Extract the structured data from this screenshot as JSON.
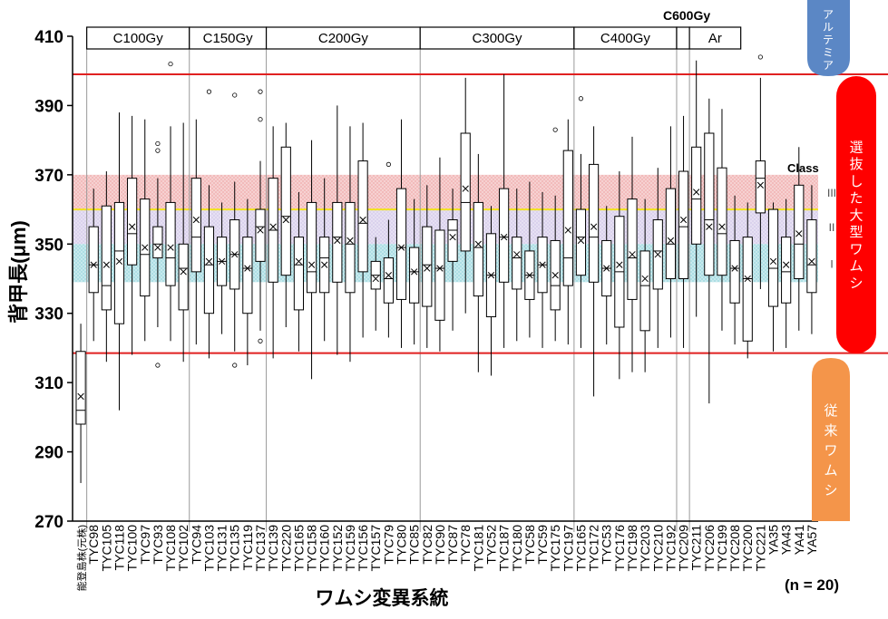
{
  "chart_data": {
    "type": "box",
    "ylabel": "背甲長(μm)",
    "xlabel": "ワムシ変異系統",
    "ylim": [
      270,
      410
    ],
    "yticks": [
      270,
      290,
      310,
      330,
      350,
      370,
      390,
      410
    ],
    "sample_note": "(n = 20)",
    "class_label": "Class",
    "class_bands": [
      {
        "name": "III",
        "range": [
          360,
          370
        ],
        "color": "#f2b8b8"
      },
      {
        "name": "II",
        "range": [
          350,
          360
        ],
        "color": "#d9d0ec"
      },
      {
        "name": "I",
        "range": [
          339,
          350
        ],
        "color": "#a9dde3"
      }
    ],
    "class_lines": [
      {
        "value": 360,
        "color": "#f2e41c"
      }
    ],
    "red_lines": [
      399,
      318.5
    ],
    "dose_groups": [
      {
        "label": "C100Gy",
        "start": 1,
        "end": 8
      },
      {
        "label": "C150Gy",
        "start": 9,
        "end": 14
      },
      {
        "label": "C200Gy",
        "start": 15,
        "end": 26
      },
      {
        "label": "C300Gy",
        "start": 27,
        "end": 38
      },
      {
        "label": "C400Gy",
        "start": 39,
        "end": 46
      },
      {
        "label": "C600Gy",
        "start": 47,
        "end": 47
      },
      {
        "label": "Ar",
        "start": 48,
        "end": 51
      }
    ],
    "boxes": [
      {
        "name": "能登島株(元株)",
        "min": 281,
        "q1": 298,
        "median": 302,
        "q3": 319,
        "max": 327,
        "mean": 306,
        "outliers": []
      },
      {
        "name": "TYC98",
        "min": 322,
        "q1": 336,
        "median": 344,
        "q3": 355,
        "max": 366,
        "mean": 344,
        "outliers": []
      },
      {
        "name": "TYC105",
        "min": 316,
        "q1": 331,
        "median": 338,
        "q3": 361,
        "max": 371,
        "mean": 344,
        "outliers": []
      },
      {
        "name": "TYC118",
        "min": 302,
        "q1": 327,
        "median": 348,
        "q3": 362,
        "max": 388,
        "mean": 345,
        "outliers": []
      },
      {
        "name": "TYC100",
        "min": 318,
        "q1": 344,
        "median": 353,
        "q3": 369,
        "max": 387,
        "mean": 355,
        "outliers": []
      },
      {
        "name": "TYC97",
        "min": 322,
        "q1": 335,
        "median": 347,
        "q3": 363,
        "max": 386,
        "mean": 349,
        "outliers": []
      },
      {
        "name": "TYC93",
        "min": 326,
        "q1": 346,
        "median": 350,
        "q3": 355,
        "max": 369,
        "mean": 349,
        "outliers": [
          315,
          377,
          379
        ]
      },
      {
        "name": "TYC108",
        "min": 322,
        "q1": 338,
        "median": 346,
        "q3": 362,
        "max": 384,
        "mean": 349,
        "outliers": [
          402
        ]
      },
      {
        "name": "TYC102",
        "min": 316,
        "q1": 331,
        "median": 343,
        "q3": 350,
        "max": 385,
        "mean": 342,
        "outliers": []
      },
      {
        "name": "TYC94",
        "min": 321,
        "q1": 342,
        "median": 352,
        "q3": 369,
        "max": 386,
        "mean": 357,
        "outliers": []
      },
      {
        "name": "TYC103",
        "min": 317,
        "q1": 330,
        "median": 344,
        "q3": 355,
        "max": 367,
        "mean": 345,
        "outliers": [
          394
        ]
      },
      {
        "name": "TYC131",
        "min": 324,
        "q1": 338,
        "median": 345,
        "q3": 352,
        "max": 362,
        "mean": 345,
        "outliers": []
      },
      {
        "name": "TYC135",
        "min": 319,
        "q1": 337,
        "median": 347,
        "q3": 357,
        "max": 368,
        "mean": 347,
        "outliers": [
          315,
          393
        ]
      },
      {
        "name": "TYC119",
        "min": 315,
        "q1": 330,
        "median": 343,
        "q3": 352,
        "max": 363,
        "mean": 343,
        "outliers": []
      },
      {
        "name": "TYC137",
        "min": 325,
        "q1": 345,
        "median": 355,
        "q3": 360,
        "max": 374,
        "mean": 354,
        "outliers": [
          322,
          386,
          394
        ]
      },
      {
        "name": "TYC139",
        "min": 317,
        "q1": 339,
        "median": 354,
        "q3": 369,
        "max": 384,
        "mean": 355,
        "outliers": []
      },
      {
        "name": "TYC220",
        "min": 326,
        "q1": 341,
        "median": 358,
        "q3": 378,
        "max": 385,
        "mean": 357,
        "outliers": []
      },
      {
        "name": "TYC165",
        "min": 319,
        "q1": 331,
        "median": 344,
        "q3": 352,
        "max": 365,
        "mean": 345,
        "outliers": []
      },
      {
        "name": "TYC158",
        "min": 311,
        "q1": 336,
        "median": 342,
        "q3": 362,
        "max": 380,
        "mean": 344,
        "outliers": []
      },
      {
        "name": "TYC160",
        "min": 322,
        "q1": 336,
        "median": 346,
        "q3": 352,
        "max": 369,
        "mean": 344,
        "outliers": []
      },
      {
        "name": "TYC152",
        "min": 318,
        "q1": 339,
        "median": 352,
        "q3": 362,
        "max": 390,
        "mean": 351,
        "outliers": []
      },
      {
        "name": "TYC159",
        "min": 316,
        "q1": 336,
        "median": 350,
        "q3": 362,
        "max": 384,
        "mean": 351,
        "outliers": []
      },
      {
        "name": "TYC156",
        "min": 323,
        "q1": 342,
        "median": 356,
        "q3": 374,
        "max": 385,
        "mean": 357,
        "outliers": []
      },
      {
        "name": "TYC157",
        "min": 325,
        "q1": 337,
        "median": 341,
        "q3": 345,
        "max": 352,
        "mean": 340,
        "outliers": []
      },
      {
        "name": "TYC79",
        "min": 323,
        "q1": 333,
        "median": 340,
        "q3": 346,
        "max": 357,
        "mean": 341,
        "outliers": [
          373
        ]
      },
      {
        "name": "TYC80",
        "min": 320,
        "q1": 334,
        "median": 349,
        "q3": 366,
        "max": 386,
        "mean": 349,
        "outliers": []
      },
      {
        "name": "TYC85",
        "min": 321,
        "q1": 333,
        "median": 342,
        "q3": 349,
        "max": 363,
        "mean": 342,
        "outliers": []
      },
      {
        "name": "TYC82",
        "min": 320,
        "q1": 332,
        "median": 344,
        "q3": 355,
        "max": 367,
        "mean": 343,
        "outliers": []
      },
      {
        "name": "TYC90",
        "min": 319,
        "q1": 328,
        "median": 343,
        "q3": 354,
        "max": 375,
        "mean": 343,
        "outliers": []
      },
      {
        "name": "TYC87",
        "min": 325,
        "q1": 345,
        "median": 354,
        "q3": 357,
        "max": 366,
        "mean": 352,
        "outliers": []
      },
      {
        "name": "TYC78",
        "min": 330,
        "q1": 348,
        "median": 362,
        "q3": 382,
        "max": 398,
        "mean": 366,
        "outliers": []
      },
      {
        "name": "TYC181",
        "min": 313,
        "q1": 335,
        "median": 349,
        "q3": 362,
        "max": 376,
        "mean": 350,
        "outliers": []
      },
      {
        "name": "TYC52",
        "min": 312,
        "q1": 329,
        "median": 341,
        "q3": 353,
        "max": 361,
        "mean": 341,
        "outliers": []
      },
      {
        "name": "TYC187",
        "min": 320,
        "q1": 339,
        "median": 352,
        "q3": 366,
        "max": 399,
        "mean": 352,
        "outliers": []
      },
      {
        "name": "TYC180",
        "min": 322,
        "q1": 337,
        "median": 346,
        "q3": 352,
        "max": 366,
        "mean": 347,
        "outliers": []
      },
      {
        "name": "TYC58",
        "min": 323,
        "q1": 334,
        "median": 341,
        "q3": 348,
        "max": 368,
        "mean": 341,
        "outliers": []
      },
      {
        "name": "TYC59",
        "min": 320,
        "q1": 336,
        "median": 344,
        "q3": 352,
        "max": 365,
        "mean": 344,
        "outliers": []
      },
      {
        "name": "TYC175",
        "min": 322,
        "q1": 331,
        "median": 338,
        "q3": 351,
        "max": 364,
        "mean": 341,
        "outliers": [
          383
        ]
      },
      {
        "name": "TYC197",
        "min": 321,
        "q1": 338,
        "median": 346,
        "q3": 377,
        "max": 386,
        "mean": 354,
        "outliers": []
      },
      {
        "name": "TYC165",
        "min": 320,
        "q1": 341,
        "median": 352,
        "q3": 360,
        "max": 376,
        "mean": 351,
        "outliers": [
          392
        ]
      },
      {
        "name": "TYC172",
        "min": 306,
        "q1": 339,
        "median": 352,
        "q3": 373,
        "max": 384,
        "mean": 355,
        "outliers": []
      },
      {
        "name": "TYC53",
        "min": 321,
        "q1": 335,
        "median": 343,
        "q3": 351,
        "max": 361,
        "mean": 343,
        "outliers": []
      },
      {
        "name": "TYC176",
        "min": 311,
        "q1": 326,
        "median": 342,
        "q3": 358,
        "max": 371,
        "mean": 344,
        "outliers": []
      },
      {
        "name": "TYC198",
        "min": 313,
        "q1": 334,
        "median": 346,
        "q3": 363,
        "max": 381,
        "mean": 347,
        "outliers": []
      },
      {
        "name": "TYC203",
        "min": 313,
        "q1": 325,
        "median": 338,
        "q3": 348,
        "max": 363,
        "mean": 340,
        "outliers": []
      },
      {
        "name": "TYC210",
        "min": 320,
        "q1": 337,
        "median": 348,
        "q3": 357,
        "max": 372,
        "mean": 347,
        "outliers": []
      },
      {
        "name": "TYC192",
        "min": 323,
        "q1": 340,
        "median": 350,
        "q3": 366,
        "max": 384,
        "mean": 351,
        "outliers": []
      },
      {
        "name": "TYC209",
        "min": 320,
        "q1": 340,
        "median": 355,
        "q3": 371,
        "max": 387,
        "mean": 357,
        "outliers": []
      },
      {
        "name": "TYC211",
        "min": 329,
        "q1": 350,
        "median": 363,
        "q3": 378,
        "max": 403,
        "mean": 365,
        "outliers": []
      },
      {
        "name": "TYC206",
        "min": 304,
        "q1": 341,
        "median": 357,
        "q3": 382,
        "max": 392,
        "mean": 355,
        "outliers": []
      },
      {
        "name": "TYC199",
        "min": 325,
        "q1": 341,
        "median": 353,
        "q3": 372,
        "max": 389,
        "mean": 355,
        "outliers": []
      },
      {
        "name": "TYC208",
        "min": 321,
        "q1": 333,
        "median": 343,
        "q3": 351,
        "max": 364,
        "mean": 343,
        "outliers": []
      },
      {
        "name": "TYC200",
        "min": 317,
        "q1": 322,
        "median": 340,
        "q3": 352,
        "max": 362,
        "mean": 340,
        "outliers": []
      },
      {
        "name": "TYC221",
        "min": 337,
        "q1": 359,
        "median": 369,
        "q3": 374,
        "max": 398,
        "mean": 367,
        "outliers": [
          404
        ]
      },
      {
        "name": "YA35",
        "min": 319,
        "q1": 332,
        "median": 343,
        "q3": 360,
        "max": 362,
        "mean": 345,
        "outliers": []
      },
      {
        "name": "YA43",
        "min": 320,
        "q1": 333,
        "median": 342,
        "q3": 352,
        "max": 363,
        "mean": 344,
        "outliers": []
      },
      {
        "name": "YA41",
        "min": 325,
        "q1": 340,
        "median": 350,
        "q3": 367,
        "max": 378,
        "mean": 353,
        "outliers": []
      },
      {
        "name": "YA57",
        "min": 324,
        "q1": 336,
        "median": 344,
        "q3": 357,
        "max": 367,
        "mean": 345,
        "outliers": []
      }
    ]
  },
  "right_labels": {
    "artemia": "アルテミア",
    "selected": "選抜した大型ワムシ",
    "conventional": "従来ワムシ"
  },
  "colors": {
    "red_line": "#e02020",
    "artemia_bg": "#5b87c5",
    "selected_bg": "#ff0000",
    "conventional_bg": "#f4954a"
  }
}
